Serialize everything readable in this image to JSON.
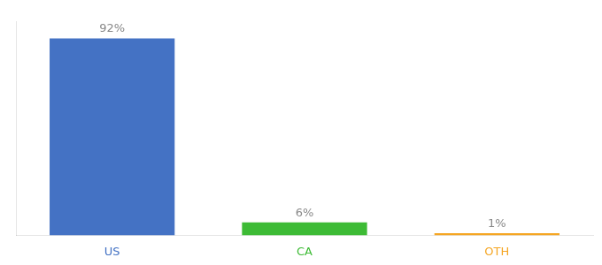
{
  "chart_data": {
    "type": "bar",
    "categories": [
      "US",
      "CA",
      "OTH"
    ],
    "values": [
      92,
      6,
      1
    ],
    "value_labels": [
      "92%",
      "6%",
      "1%"
    ],
    "colors": [
      "#4472c4",
      "#3dbb35",
      "#f5a623"
    ],
    "ylim": [
      0,
      100
    ],
    "data_labels": true,
    "grid": false,
    "tick_labels": "x"
  }
}
